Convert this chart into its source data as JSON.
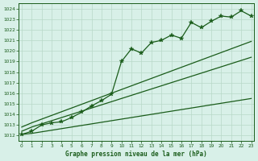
{
  "title": "Graphe pression niveau de la mer (hPa)",
  "bg_color": "#d8f0e8",
  "grid_color": "#b8d8c8",
  "line_color": "#1a5c1a",
  "marker_color": "#1a5c1a",
  "xlim": [
    -0.3,
    23.3
  ],
  "ylim": [
    1011.5,
    1024.5
  ],
  "ylabel_ticks": [
    1012,
    1013,
    1014,
    1015,
    1016,
    1017,
    1018,
    1019,
    1020,
    1021,
    1022,
    1023,
    1024
  ],
  "x_data": [
    0,
    1,
    2,
    3,
    4,
    5,
    6,
    7,
    8,
    9,
    10,
    11,
    12,
    13,
    14,
    15,
    16,
    17,
    18,
    19,
    20,
    21,
    22,
    23
  ],
  "y_measured": [
    1012.1,
    1012.4,
    1013.0,
    1013.2,
    1013.3,
    1013.7,
    1014.2,
    1014.8,
    1015.3,
    1015.9,
    1019.0,
    1020.2,
    1019.8,
    1020.8,
    1021.0,
    1021.5,
    1021.2,
    1022.7,
    1022.2,
    1022.8,
    1023.3,
    1023.2,
    1023.8,
    1023.3
  ],
  "y_trend_low": [
    1012.1,
    1012.2,
    1012.35,
    1012.5,
    1012.65,
    1012.8,
    1012.95,
    1013.1,
    1013.25,
    1013.4,
    1013.55,
    1013.7,
    1013.85,
    1014.0,
    1014.15,
    1014.3,
    1014.45,
    1014.6,
    1014.75,
    1014.9,
    1015.05,
    1015.2,
    1015.35,
    1015.5
  ],
  "y_trend_mid": [
    1012.4,
    1012.8,
    1013.1,
    1013.4,
    1013.7,
    1014.0,
    1014.3,
    1014.6,
    1014.9,
    1015.2,
    1015.5,
    1015.8,
    1016.1,
    1016.4,
    1016.7,
    1017.0,
    1017.3,
    1017.6,
    1017.9,
    1018.2,
    1018.5,
    1018.8,
    1019.1,
    1019.4
  ],
  "y_trend_high": [
    1012.8,
    1013.2,
    1013.55,
    1013.9,
    1014.25,
    1014.6,
    1014.95,
    1015.3,
    1015.65,
    1016.0,
    1016.35,
    1016.7,
    1017.05,
    1017.4,
    1017.75,
    1018.1,
    1018.45,
    1018.8,
    1019.15,
    1019.5,
    1019.85,
    1020.2,
    1020.55,
    1020.9
  ]
}
